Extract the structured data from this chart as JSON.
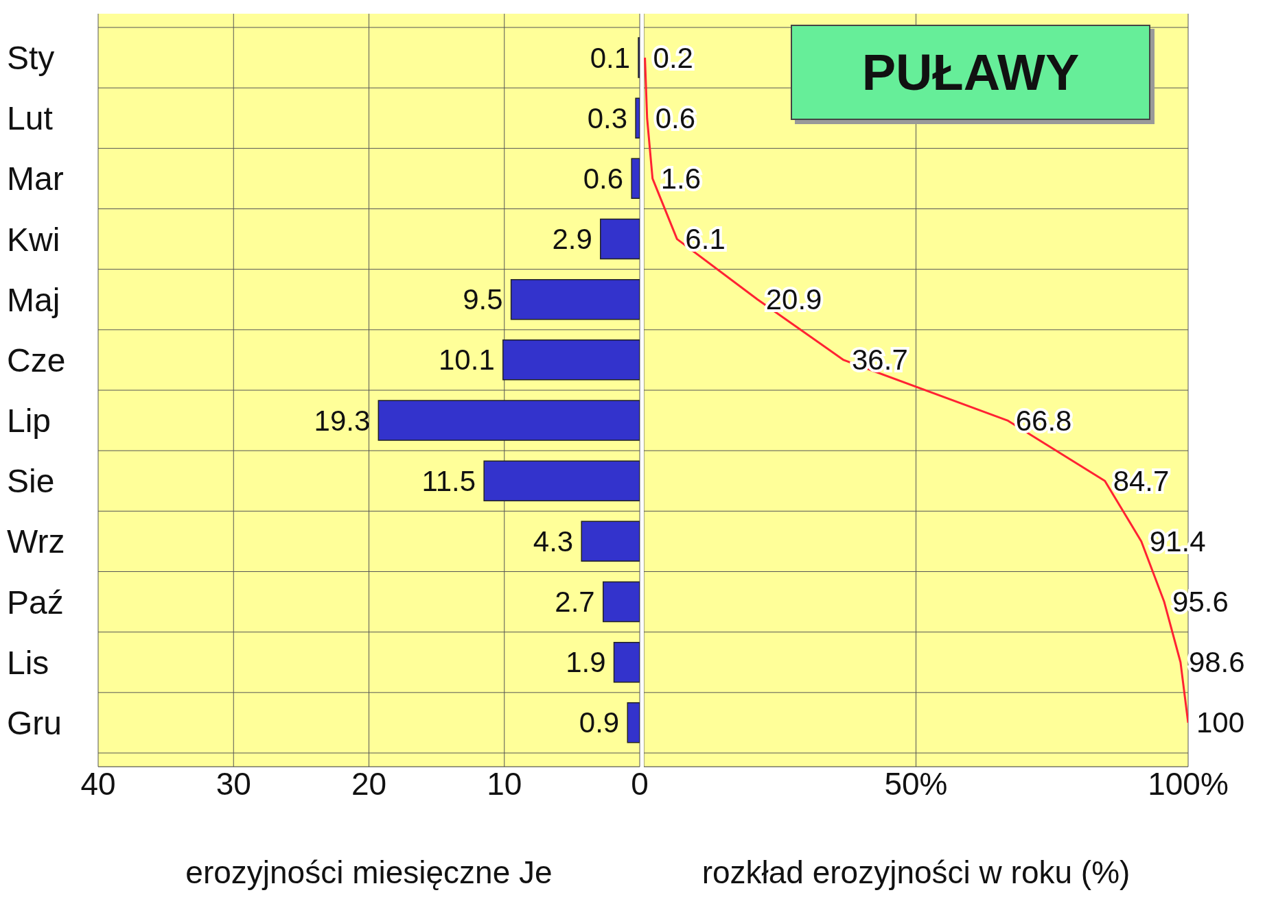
{
  "chart_data": [
    {
      "type": "bar",
      "orientation": "horizontal",
      "categories": [
        "Sty",
        "Lut",
        "Mar",
        "Kwi",
        "Maj",
        "Cze",
        "Lip",
        "Sie",
        "Wrz",
        "Paź",
        "Lis",
        "Gru"
      ],
      "values": [
        0.1,
        0.3,
        0.6,
        2.9,
        9.5,
        10.1,
        19.3,
        11.5,
        4.3,
        2.7,
        1.9,
        0.9
      ],
      "color": "#3333cc",
      "xlim": [
        40,
        0
      ],
      "xticks": [
        40,
        30,
        20,
        10,
        0
      ],
      "xlabel": "erozyjności miesięczne Je",
      "data_labels": true,
      "grid": true
    },
    {
      "type": "line",
      "orientation": "horizontal",
      "title": "PUŁAWY",
      "categories": [
        null,
        null,
        null,
        null,
        null,
        null,
        null,
        null,
        null,
        null,
        null,
        null
      ],
      "values": [
        0.2,
        0.6,
        1.6,
        6.1,
        20.9,
        36.7,
        66.8,
        84.7,
        91.4,
        95.6,
        98.6,
        100
      ],
      "color": "#ff2233",
      "xlim": [
        0,
        100
      ],
      "xticks": [
        {
          "value": 0,
          "label": null
        },
        {
          "value": 50,
          "label": "50%"
        },
        {
          "value": 100,
          "label": "100%"
        }
      ],
      "xlabel": "rozkład erozyjności w roku (%)",
      "data_labels": true,
      "grid": true,
      "tick_labels": "x"
    }
  ]
}
